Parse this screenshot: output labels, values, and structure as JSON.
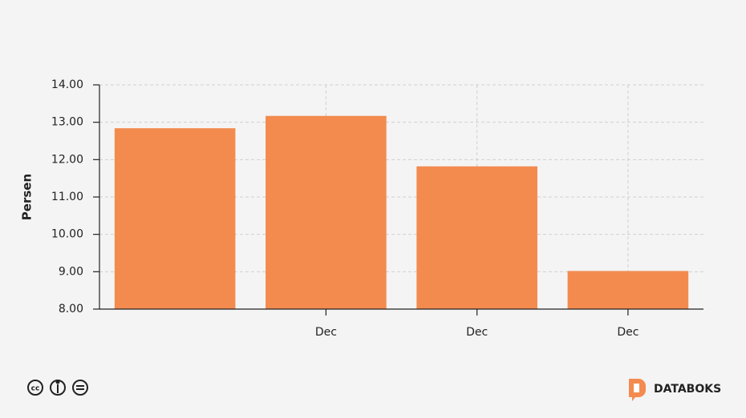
{
  "chart_data": {
    "type": "bar",
    "y_label": "Persen",
    "categories": [
      null,
      "Dec",
      "Dec",
      "Dec"
    ],
    "values": [
      12.84,
      13.17,
      11.82,
      9.02
    ],
    "color": "#f38b4f",
    "ylim": [
      8,
      14
    ],
    "yticks": [
      {
        "value": 8,
        "label": "8.00"
      },
      {
        "value": 9,
        "label": "9.00"
      },
      {
        "value": 10,
        "label": "10.00"
      },
      {
        "value": 11,
        "label": "11.00"
      },
      {
        "value": 12,
        "label": "12.00"
      },
      {
        "value": 13,
        "label": "13.00"
      },
      {
        "value": 14,
        "label": "14.00"
      }
    ],
    "grid": true
  },
  "brand": "DATABOKS"
}
